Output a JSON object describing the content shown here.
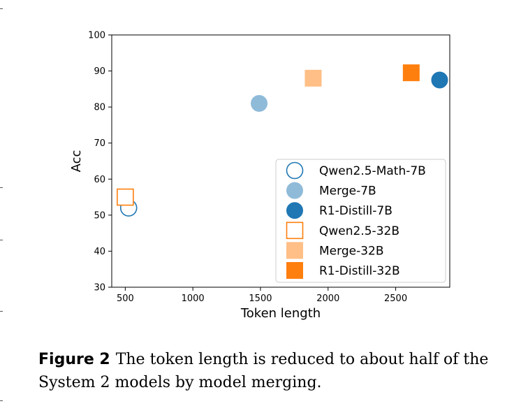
{
  "chart_data": {
    "type": "scatter",
    "title": "",
    "xlabel": "Token length",
    "ylabel": "Acc",
    "xlim": [
      400,
      2900
    ],
    "ylim": [
      30,
      100
    ],
    "xticks": [
      500,
      1000,
      1500,
      2000,
      2500
    ],
    "yticks": [
      30,
      40,
      50,
      60,
      70,
      80,
      90,
      100
    ],
    "grid": false,
    "legend_position": "lower-right",
    "series": [
      {
        "name": "Qwen2.5-Math-7B",
        "marker": "circle",
        "fill": "none",
        "color": "#1f77b4",
        "x": 525,
        "y": 52
      },
      {
        "name": "Merge-7B",
        "marker": "circle",
        "fill": "light",
        "color": "#1f77b4",
        "x": 1490,
        "y": 81
      },
      {
        "name": "R1-Distill-7B",
        "marker": "circle",
        "fill": "solid",
        "color": "#1f77b4",
        "x": 2825,
        "y": 87.5
      },
      {
        "name": "Qwen2.5-32B",
        "marker": "square",
        "fill": "none",
        "color": "#ff7f0e",
        "x": 500,
        "y": 55
      },
      {
        "name": "Merge-32B",
        "marker": "square",
        "fill": "light",
        "color": "#ff7f0e",
        "x": 1890,
        "y": 88
      },
      {
        "name": "R1-Distill-32B",
        "marker": "square",
        "fill": "solid",
        "color": "#ff7f0e",
        "x": 2615,
        "y": 89.5
      }
    ]
  },
  "caption": {
    "label": "Figure 2",
    "text": "The token length is reduced to about half of the System 2 models by model merging."
  }
}
